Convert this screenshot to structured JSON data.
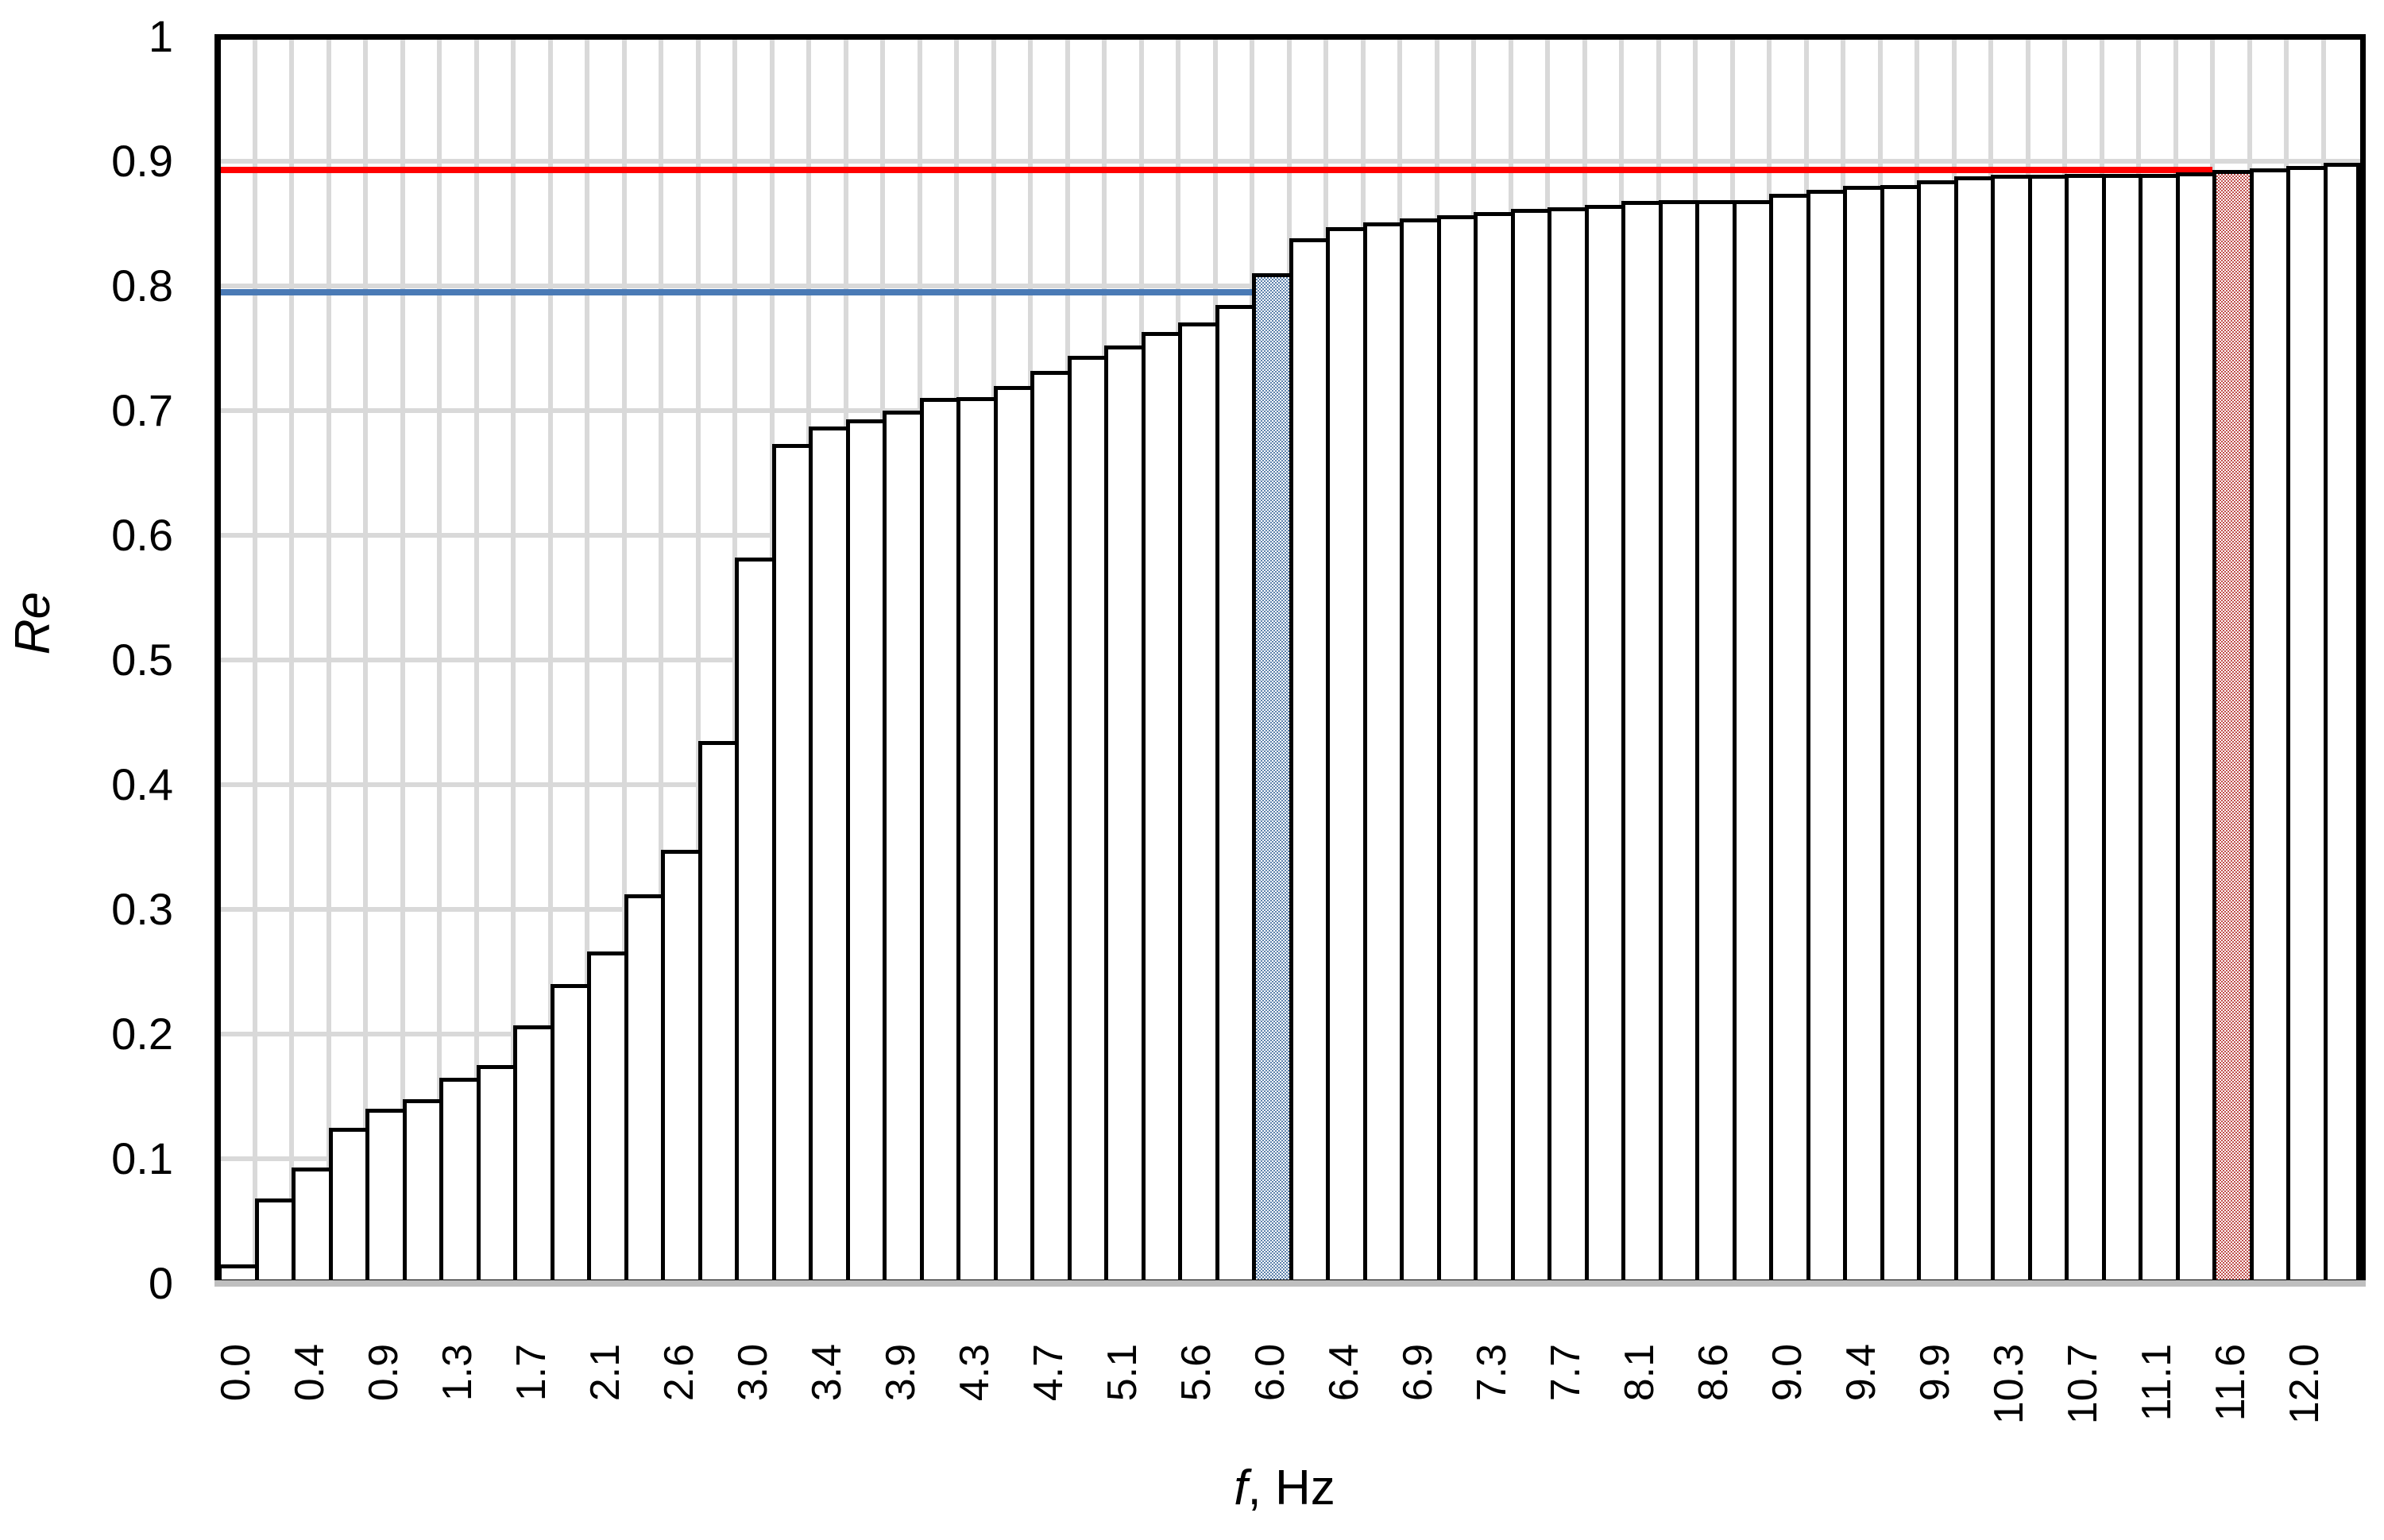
{
  "chart_data": {
    "type": "bar",
    "title": "",
    "xlabel_symbol": "f",
    "xlabel_rest": ", Hz",
    "ylabel": "Re",
    "ylim": [
      0,
      1
    ],
    "grid": "both",
    "y_tick_labels": [
      "1",
      "0.9",
      "0.8",
      "0.7",
      "0.6",
      "0.5",
      "0.4",
      "0.3",
      "0.2",
      "0.1",
      "0"
    ],
    "x_tick_labels": [
      "0.0",
      "0.4",
      "0.9",
      "1.3",
      "1.7",
      "2.1",
      "2.6",
      "3.0",
      "3.4",
      "3.9",
      "4.3",
      "4.7",
      "5.1",
      "5.6",
      "6.0",
      "6.4",
      "6.9",
      "7.3",
      "7.7",
      "8.1",
      "8.6",
      "9.0",
      "9.4",
      "9.9",
      "10.3",
      "10.7",
      "11.1",
      "11.6",
      "12.0"
    ],
    "x_tick_every_n_bars": 2,
    "frequency_step_hz": 0.2143,
    "values": [
      0.015,
      0.068,
      0.093,
      0.125,
      0.14,
      0.148,
      0.165,
      0.175,
      0.207,
      0.24,
      0.266,
      0.312,
      0.348,
      0.435,
      0.582,
      0.673,
      0.687,
      0.693,
      0.7,
      0.71,
      0.711,
      0.72,
      0.732,
      0.744,
      0.752,
      0.763,
      0.771,
      0.785,
      0.81,
      0.838,
      0.847,
      0.851,
      0.854,
      0.857,
      0.859,
      0.862,
      0.863,
      0.865,
      0.868,
      0.869,
      0.869,
      0.869,
      0.874,
      0.877,
      0.88,
      0.881,
      0.885,
      0.888,
      0.889,
      0.889,
      0.89,
      0.89,
      0.89,
      0.891,
      0.893,
      0.894,
      0.896,
      0.899
    ],
    "highlighted_bars": [
      {
        "index": 28,
        "f_hz": "6.0",
        "value": 0.81,
        "style": "blue-pattern"
      },
      {
        "index": 54,
        "f_hz": "11.6",
        "value": 0.893,
        "style": "red-pattern"
      }
    ],
    "threshold_lines": [
      {
        "name": "blue-threshold",
        "value": 0.795,
        "color": "#4a7ab5",
        "ends_at_bar_index": 28
      },
      {
        "name": "red-threshold",
        "value": 0.893,
        "color": "#ff0000",
        "ends_at_bar_index": 54
      }
    ],
    "colors": {
      "bar_border": "#000000",
      "bar_fill": "#ffffff",
      "blue_pattern": "#5d82ac",
      "red_pattern": "#c0504d",
      "gridline": "#d9d9d9",
      "bottom_axis": "#bfbfbf",
      "frame": "#000000"
    }
  }
}
